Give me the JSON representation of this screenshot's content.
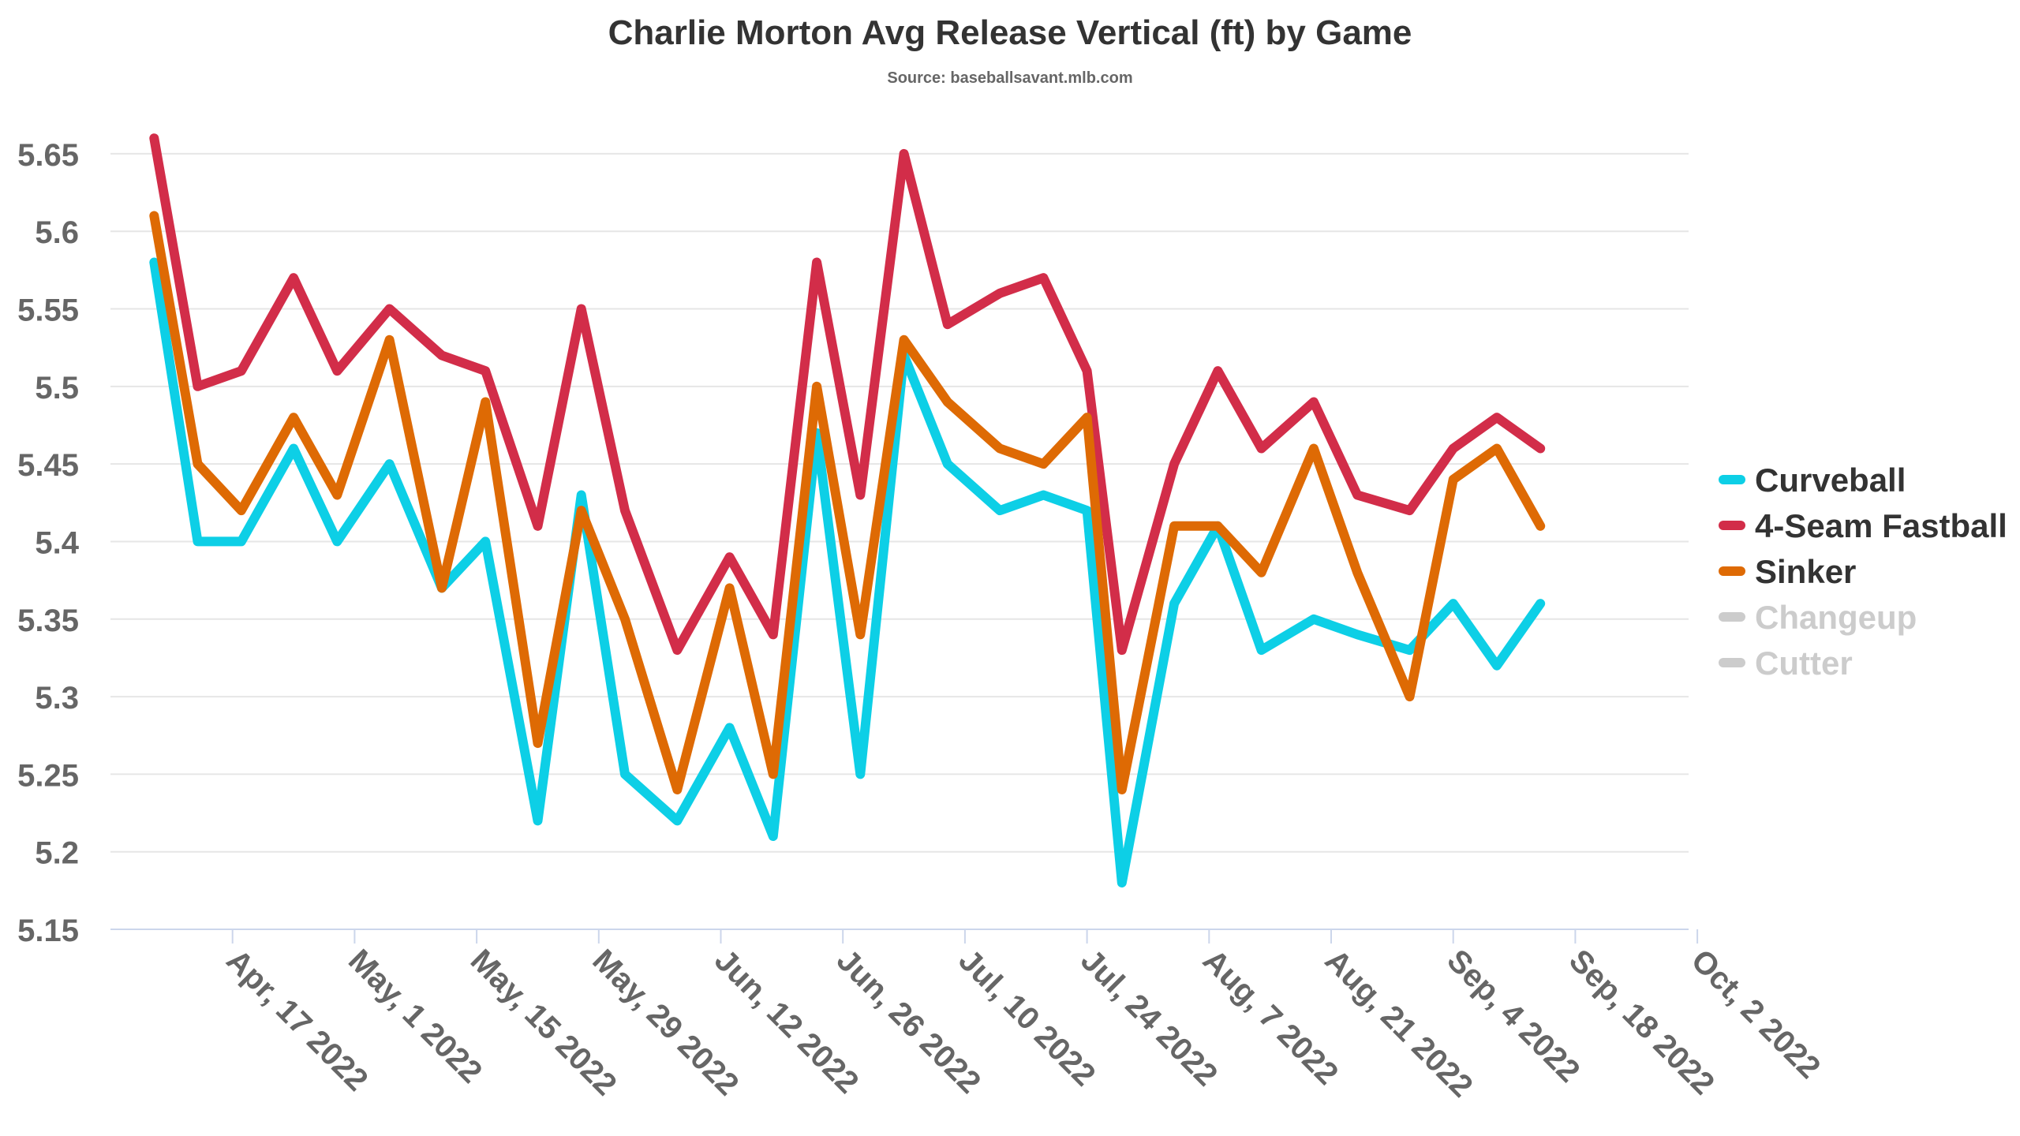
{
  "chart_data": {
    "type": "line",
    "title": "Charlie Morton Avg Release Vertical (ft) by Game",
    "subtitle": "Source: baseballsavant.mlb.com",
    "xlabel": "",
    "ylabel": "",
    "ylim": [
      5.15,
      5.68
    ],
    "yticks": [
      "5.15",
      "5.2",
      "5.25",
      "5.3",
      "5.35",
      "5.4",
      "5.45",
      "5.5",
      "5.55",
      "5.6",
      "5.65"
    ],
    "xticks": [
      "2022-04-17",
      "2022-05-01",
      "2022-05-15",
      "2022-05-29",
      "2022-06-12",
      "2022-06-26",
      "2022-07-10",
      "2022-07-24",
      "2022-08-07",
      "2022-08-21",
      "2022-09-04",
      "2022-09-18",
      "2022-10-02"
    ],
    "xtick_labels": [
      "Apr, 17 2022",
      "May, 1 2022",
      "May, 15 2022",
      "May, 29 2022",
      "Jun, 12 2022",
      "Jun, 26 2022",
      "Jul, 10 2022",
      "Jul, 24 2022",
      "Aug, 7 2022",
      "Aug, 21 2022",
      "Sep, 4 2022",
      "Sep, 18 2022",
      "Oct, 2 2022"
    ],
    "x": [
      "2022-04-08",
      "2022-04-13",
      "2022-04-18",
      "2022-04-24",
      "2022-04-29",
      "2022-05-05",
      "2022-05-11",
      "2022-05-16",
      "2022-05-22",
      "2022-05-27",
      "2022-06-01",
      "2022-06-07",
      "2022-06-13",
      "2022-06-18",
      "2022-06-23",
      "2022-06-28",
      "2022-07-03",
      "2022-07-08",
      "2022-07-14",
      "2022-07-28",
      "2022-08-03",
      "2022-08-08",
      "2022-08-13",
      "2022-08-19",
      "2022-08-24",
      "2022-08-30",
      "2022-09-04",
      "2022-09-09",
      "2022-09-14",
      "2022-09-19",
      "2022-09-24",
      "2022-09-29"
    ],
    "series": [
      {
        "name": "Curveball",
        "color": "#0dcfe6",
        "visible": true,
        "points": [
          [
            "2022-04-08",
            5.58
          ],
          [
            "2022-04-13",
            5.4
          ],
          [
            "2022-04-18",
            5.4
          ],
          [
            "2022-04-24",
            5.46
          ],
          [
            "2022-04-29",
            5.4
          ],
          [
            "2022-05-05",
            5.45
          ],
          [
            "2022-05-11",
            5.37
          ],
          [
            "2022-05-16",
            5.4
          ],
          [
            "2022-05-22",
            5.22
          ],
          [
            "2022-05-27",
            5.43
          ],
          [
            "2022-06-01",
            5.25
          ],
          [
            "2022-06-07",
            5.22
          ],
          [
            "2022-06-13",
            5.28
          ],
          [
            "2022-06-18",
            5.21
          ],
          [
            "2022-06-23",
            5.47
          ],
          [
            "2022-06-28",
            5.25
          ],
          [
            "2022-07-03",
            5.52
          ],
          [
            "2022-07-08",
            5.45
          ],
          [
            "2022-07-14",
            5.42
          ],
          [
            "2022-07-19",
            5.43
          ],
          [
            "2022-07-24",
            5.42
          ],
          [
            "2022-07-28",
            5.18
          ],
          [
            "2022-08-03",
            5.36
          ],
          [
            "2022-08-08",
            5.41
          ],
          [
            "2022-08-13",
            5.33
          ],
          [
            "2022-08-19",
            5.35
          ],
          [
            "2022-08-24",
            5.34
          ],
          [
            "2022-08-30",
            5.33
          ],
          [
            "2022-09-04",
            5.36
          ],
          [
            "2022-09-09",
            5.32
          ],
          [
            "2022-09-14",
            5.36
          ]
        ]
      },
      {
        "name": "4-Seam Fastball",
        "color": "#d22d49",
        "visible": true,
        "points": [
          [
            "2022-04-08",
            5.66
          ],
          [
            "2022-04-13",
            5.5
          ],
          [
            "2022-04-18",
            5.51
          ],
          [
            "2022-04-24",
            5.57
          ],
          [
            "2022-04-29",
            5.51
          ],
          [
            "2022-05-05",
            5.55
          ],
          [
            "2022-05-11",
            5.52
          ],
          [
            "2022-05-16",
            5.51
          ],
          [
            "2022-05-22",
            5.41
          ],
          [
            "2022-05-27",
            5.55
          ],
          [
            "2022-06-01",
            5.42
          ],
          [
            "2022-06-07",
            5.33
          ],
          [
            "2022-06-13",
            5.39
          ],
          [
            "2022-06-18",
            5.34
          ],
          [
            "2022-06-23",
            5.58
          ],
          [
            "2022-06-28",
            5.43
          ],
          [
            "2022-07-03",
            5.65
          ],
          [
            "2022-07-08",
            5.54
          ],
          [
            "2022-07-14",
            5.56
          ],
          [
            "2022-07-19",
            5.57
          ],
          [
            "2022-07-24",
            5.51
          ],
          [
            "2022-07-28",
            5.33
          ],
          [
            "2022-08-03",
            5.45
          ],
          [
            "2022-08-08",
            5.51
          ],
          [
            "2022-08-13",
            5.46
          ],
          [
            "2022-08-19",
            5.49
          ],
          [
            "2022-08-24",
            5.43
          ],
          [
            "2022-08-30",
            5.42
          ],
          [
            "2022-09-04",
            5.46
          ],
          [
            "2022-09-09",
            5.48
          ],
          [
            "2022-09-14",
            5.46
          ]
        ]
      },
      {
        "name": "Sinker",
        "color": "#de6a04",
        "visible": true,
        "points": [
          [
            "2022-04-08",
            5.61
          ],
          [
            "2022-04-13",
            5.45
          ],
          [
            "2022-04-18",
            5.42
          ],
          [
            "2022-04-24",
            5.48
          ],
          [
            "2022-04-29",
            5.43
          ],
          [
            "2022-05-05",
            5.53
          ],
          [
            "2022-05-11",
            5.37
          ],
          [
            "2022-05-16",
            5.49
          ],
          [
            "2022-05-22",
            5.27
          ],
          [
            "2022-05-27",
            5.42
          ],
          [
            "2022-06-01",
            5.35
          ],
          [
            "2022-06-07",
            5.24
          ],
          [
            "2022-06-13",
            5.37
          ],
          [
            "2022-06-18",
            5.25
          ],
          [
            "2022-06-23",
            5.5
          ],
          [
            "2022-06-28",
            5.34
          ],
          [
            "2022-07-03",
            5.53
          ],
          [
            "2022-07-08",
            5.49
          ],
          [
            "2022-07-14",
            5.46
          ],
          [
            "2022-07-19",
            5.45
          ],
          [
            "2022-07-24",
            5.48
          ],
          [
            "2022-07-28",
            5.24
          ],
          [
            "2022-08-03",
            5.41
          ],
          [
            "2022-08-08",
            5.41
          ],
          [
            "2022-08-13",
            5.38
          ],
          [
            "2022-08-19",
            5.46
          ],
          [
            "2022-08-24",
            5.38
          ],
          [
            "2022-08-30",
            5.3
          ],
          [
            "2022-09-04",
            5.44
          ],
          [
            "2022-09-09",
            5.46
          ],
          [
            "2022-09-14",
            5.41
          ]
        ]
      },
      {
        "name": "Changeup",
        "color": "#cccccc",
        "visible": false,
        "points": []
      },
      {
        "name": "Cutter",
        "color": "#cccccc",
        "visible": false,
        "points": []
      }
    ],
    "legend_position": "right",
    "grid": true
  }
}
